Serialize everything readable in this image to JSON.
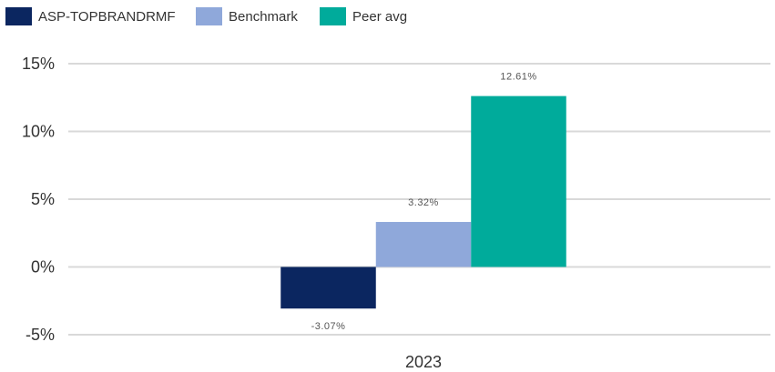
{
  "chart_data": {
    "type": "bar",
    "categories": [
      "2023"
    ],
    "series": [
      {
        "name": "ASP-TOPBRANDRMF",
        "values": [
          -3.07
        ],
        "label": "-3.07%",
        "color": "#0b2660"
      },
      {
        "name": "Benchmark",
        "values": [
          3.32
        ],
        "label": "3.32%",
        "color": "#8fa8da"
      },
      {
        "name": "Peer avg",
        "values": [
          12.61
        ],
        "label": "12.61%",
        "color": "#00ab9b"
      }
    ],
    "ylim": [
      -5,
      15
    ],
    "yticks": [
      {
        "value": 15,
        "label": "15%"
      },
      {
        "value": 10,
        "label": "10%"
      },
      {
        "value": 5,
        "label": "5%"
      },
      {
        "value": 0,
        "label": "0%"
      },
      {
        "value": -5,
        "label": "-5%"
      }
    ],
    "grid": true,
    "legend_position": "top-left",
    "gridline_color": "#d9d9d9"
  }
}
